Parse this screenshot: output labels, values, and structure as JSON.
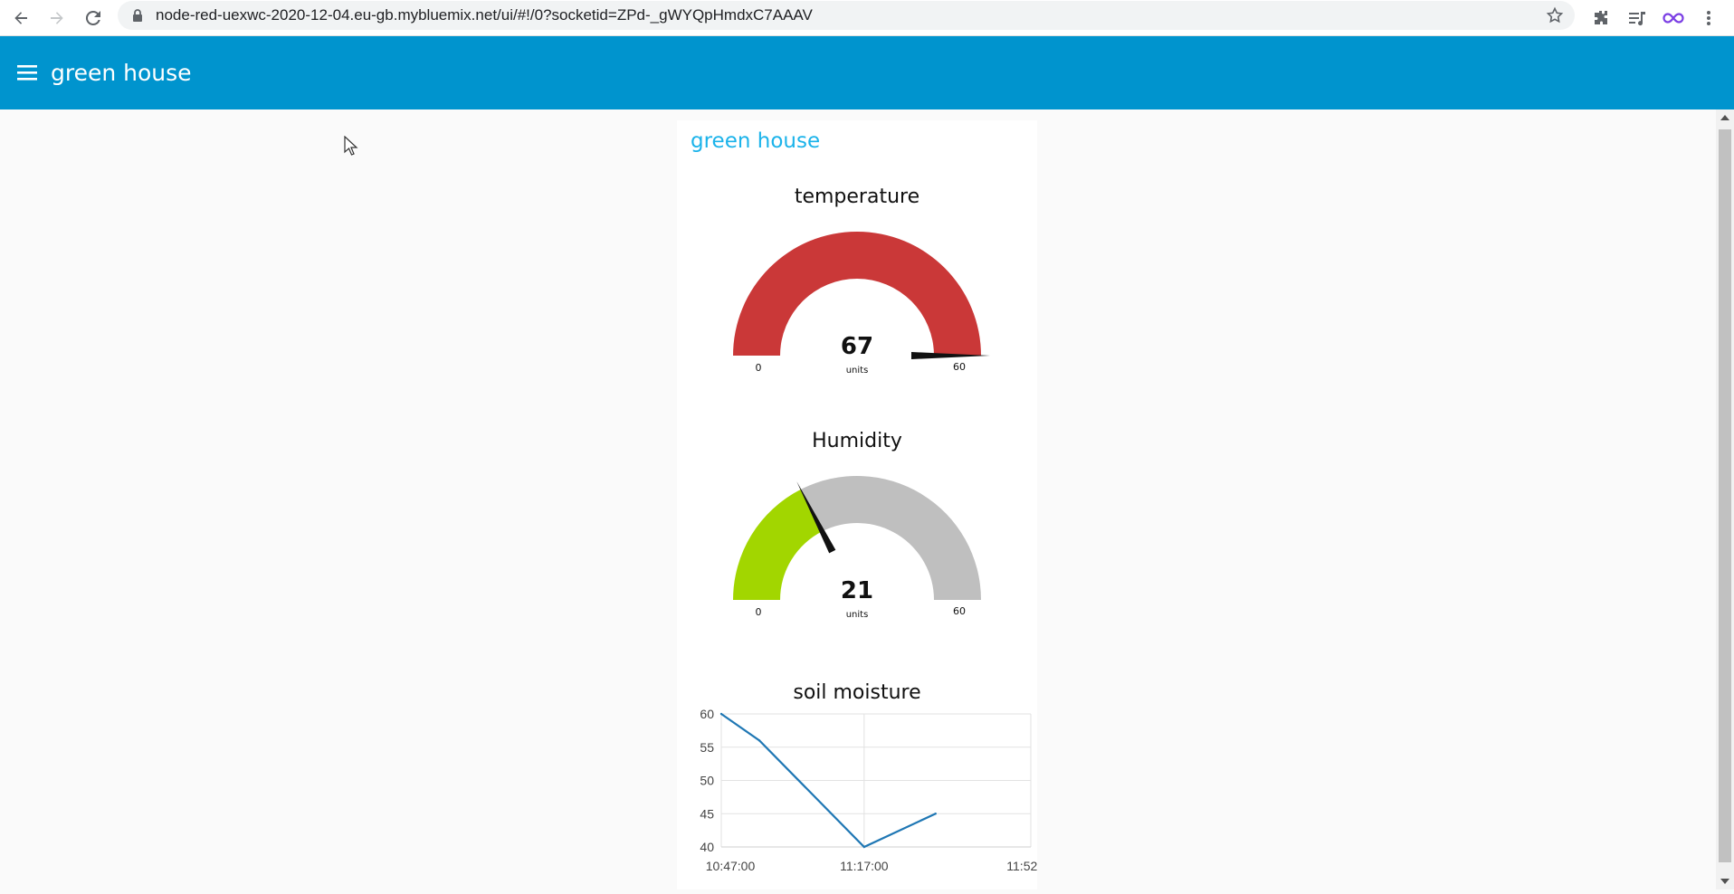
{
  "browser": {
    "url": "node-red-uexwc-2020-12-04.eu-gb.mybluemix.net/ui/#!/0?socketid=ZPd-_gWYQpHmdxC7AAAV"
  },
  "header": {
    "title": "green house"
  },
  "group": {
    "title": "green house"
  },
  "temperature": {
    "title": "temperature",
    "value": "67",
    "units": "units",
    "min": "0",
    "max": "60",
    "value_num": 67,
    "min_num": 0,
    "max_num": 60,
    "color": "#ca3838"
  },
  "humidity": {
    "title": "Humidity",
    "value": "21",
    "units": "units",
    "min": "0",
    "max": "60",
    "value_num": 21,
    "min_num": 0,
    "max_num": 60,
    "color": "#a2d600"
  },
  "soil": {
    "title": "soil moisture"
  },
  "chart_data": {
    "type": "line",
    "title": "soil moisture",
    "x": [
      "10:47:00",
      "10:55:00",
      "11:17:00",
      "11:32:00"
    ],
    "x_minutes": [
      0,
      8,
      30,
      45
    ],
    "values": [
      60,
      56,
      40,
      45
    ],
    "x_ticks": [
      "10:47:00",
      "11:17:00",
      "11:52:00"
    ],
    "x_tick_minutes": [
      0,
      30,
      65
    ],
    "y_ticks": [
      "60",
      "55",
      "50",
      "45",
      "40"
    ],
    "ylim": [
      40,
      60
    ],
    "xlim_minutes": [
      0,
      65
    ],
    "line_color": "#1f77b4",
    "grid": true
  }
}
